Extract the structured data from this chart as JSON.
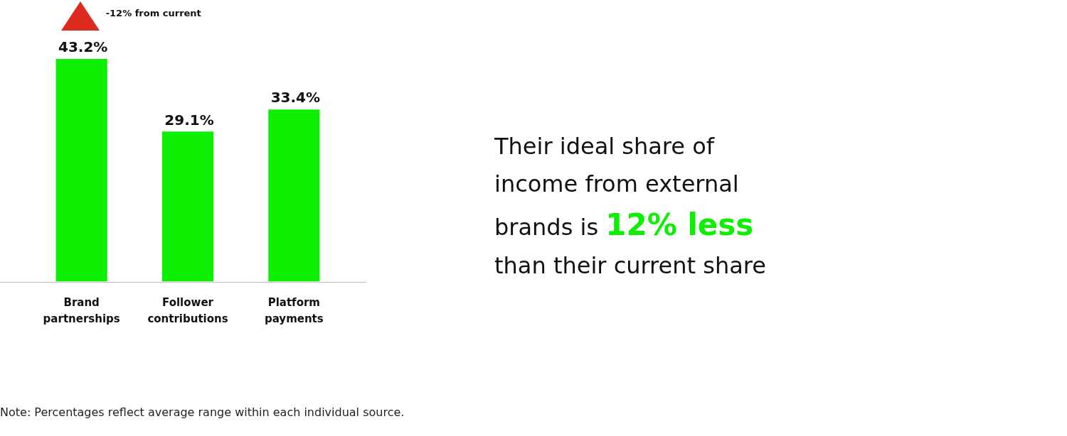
{
  "chart_data": [
    {
      "type": "bar",
      "categories": [
        "Brand partnerships",
        "Follower contributions",
        "Platform payments"
      ],
      "values": [
        43.2,
        29.1,
        33.4
      ],
      "color": "#0cef00",
      "value_labels": [
        "43.2%",
        "29.1%",
        "33.4%"
      ],
      "tick_labels": "x",
      "annotations": [
        "-12% from current",
        "Note: Percentages reflect average range within each individual source."
      ]
    },
    {
      "type": "other",
      "annotations": [
        "Their ideal share of income from external",
        "brands is",
        "12% less",
        "than their current share"
      ]
    }
  ]
}
